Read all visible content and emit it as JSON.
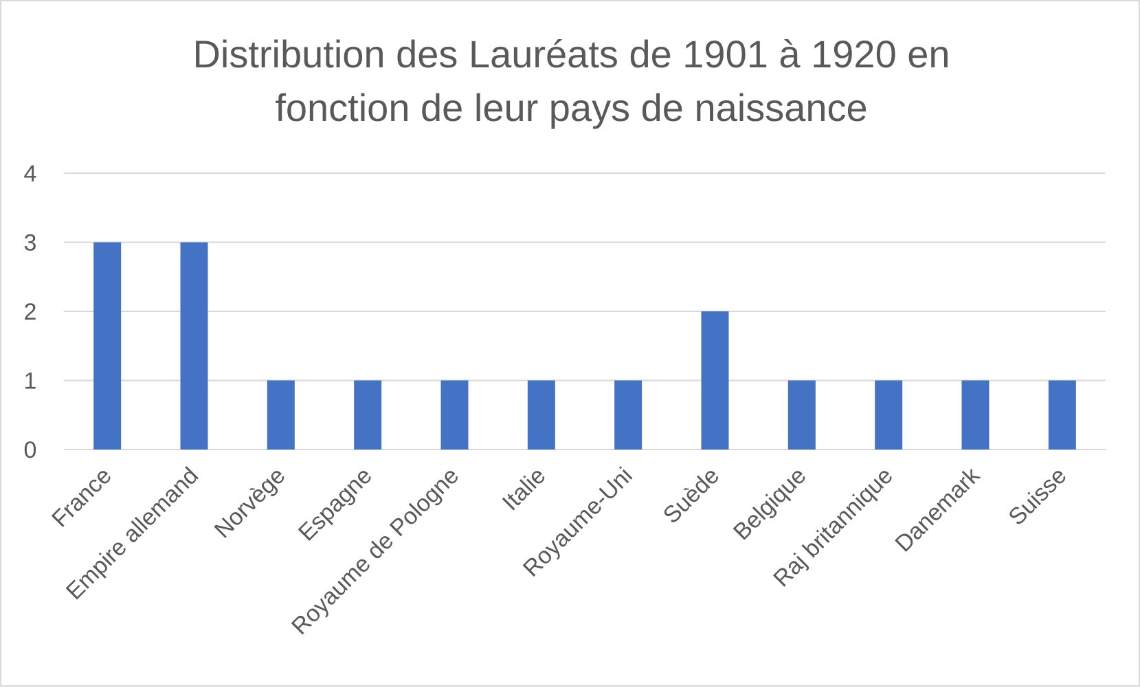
{
  "chart_data": {
    "type": "bar",
    "title": "Distribution des Lauréats de 1901 à 1920 en fonction de leur pays de naissance",
    "title_lines": [
      "Distribution des Lauréats de 1901 à 1920 en",
      "fonction de leur pays de naissance"
    ],
    "categories": [
      "France",
      "Empire allemand",
      "Norvège",
      "Espagne",
      "Royaume de Pologne",
      "Italie",
      "Royaume-Uni",
      "Suède",
      "Belgique",
      "Raj britannique",
      "Danemark",
      "Suisse"
    ],
    "values": [
      3,
      3,
      1,
      1,
      1,
      1,
      1,
      2,
      1,
      1,
      1,
      1
    ],
    "y_ticks": [
      "0",
      "1",
      "2",
      "3",
      "4"
    ],
    "ylim": [
      0,
      4
    ],
    "xlabel": "",
    "ylabel": "",
    "grid": true,
    "legend": "none",
    "bar_color": "#4472c4"
  }
}
